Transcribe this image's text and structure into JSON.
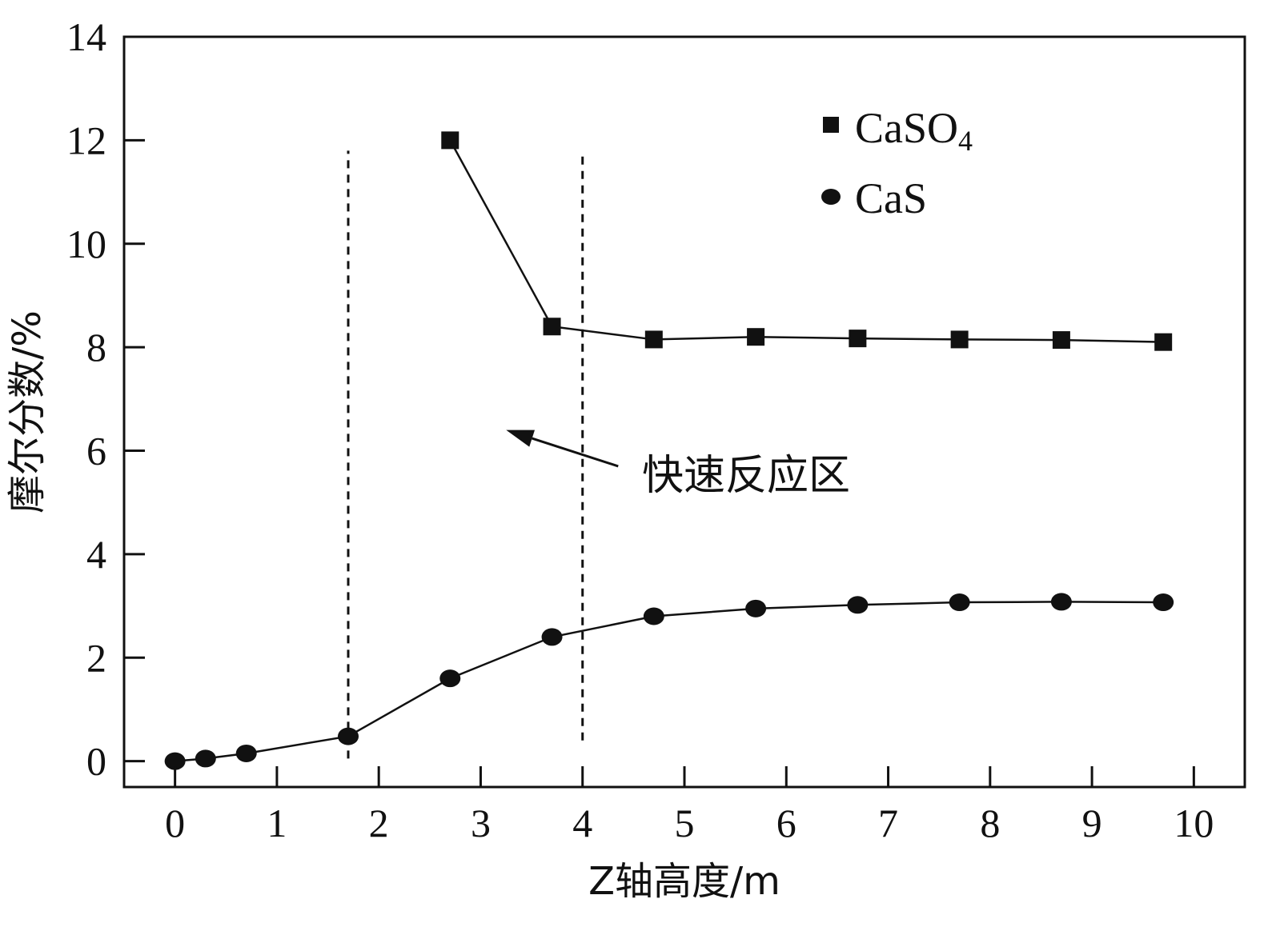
{
  "chart_data": {
    "type": "line",
    "title": "",
    "xlabel": "Z轴高度/m",
    "ylabel": "摩尔分数/%",
    "xlim": [
      -0.5,
      10.5
    ],
    "ylim": [
      -0.5,
      14
    ],
    "xticks": [
      0,
      1,
      2,
      3,
      4,
      5,
      6,
      7,
      8,
      9,
      10
    ],
    "yticks": [
      0,
      2,
      4,
      6,
      8,
      10,
      12,
      14
    ],
    "grid": false,
    "legend_position": "top-right",
    "series": [
      {
        "name": "CaSO",
        "name_subscript": "4",
        "marker": "square",
        "x": [
          2.7,
          3.7,
          4.7,
          5.7,
          6.7,
          7.7,
          8.7,
          9.7
        ],
        "y": [
          12.0,
          8.4,
          8.15,
          8.2,
          8.17,
          8.15,
          8.14,
          8.1
        ]
      },
      {
        "name": "CaS",
        "marker": "circle",
        "x": [
          0.0,
          0.3,
          0.7,
          1.7,
          2.7,
          3.7,
          4.7,
          5.7,
          6.7,
          7.7,
          8.7,
          9.7
        ],
        "y": [
          0.0,
          0.05,
          0.15,
          0.48,
          1.6,
          2.4,
          2.8,
          2.95,
          3.02,
          3.07,
          3.08,
          3.07
        ]
      }
    ],
    "reference_lines": [
      {
        "x": 1.7,
        "y_from": 0.05,
        "y_to": 11.8,
        "style": "dashed"
      },
      {
        "x": 4.0,
        "y_from": 0.4,
        "y_to": 11.8,
        "style": "dashed"
      }
    ],
    "annotation": {
      "text": "快速反应区",
      "arrow_from": [
        4.35,
        5.7
      ],
      "arrow_to": [
        3.25,
        6.4
      ]
    }
  }
}
